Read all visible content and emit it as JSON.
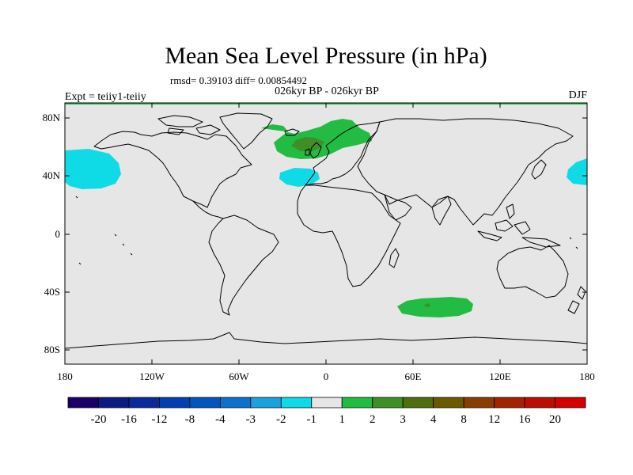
{
  "header": {
    "title": "Mean Sea Level Pressure (in hPa)",
    "stats": "rmsd= 0.39103 diff= 0.00854492",
    "period": "026kyr BP - 026kyr BP",
    "experiment": "Expt = teiiy1-teiiy",
    "season": "DJF"
  },
  "axes": {
    "lat_ticks": [
      "80N",
      "40N",
      "0",
      "40S",
      "80S"
    ],
    "lon_ticks": [
      "180",
      "120W",
      "60W",
      "0",
      "60E",
      "120E",
      "180"
    ]
  },
  "colorbar": {
    "labels": [
      "-20",
      "-16",
      "-12",
      "-8",
      "-4",
      "-3",
      "-2",
      "-1",
      "1",
      "2",
      "3",
      "4",
      "8",
      "12",
      "16",
      "20"
    ],
    "colors": [
      "#1a0066",
      "#0d1a80",
      "#0a2a99",
      "#0040b0",
      "#0055bf",
      "#0a72cc",
      "#1aa2dd",
      "#0fdbe6",
      "#e6e6e6",
      "#22bb44",
      "#3f8f26",
      "#4f6e0f",
      "#6b5a00",
      "#8a3d00",
      "#a52200",
      "#bb0e00",
      "#d40000"
    ]
  },
  "map": {
    "background": "#e6e6e6",
    "anomalies": [
      {
        "name": "north-pacific-negative",
        "color": "#0fdbe6",
        "value": "-1"
      },
      {
        "name": "far-east-pacific-negative",
        "color": "#0fdbe6",
        "value": "-1"
      },
      {
        "name": "north-atlantic-negative",
        "color": "#0fdbe6",
        "value": "-1"
      },
      {
        "name": "north-atlantic-positive",
        "color": "#22bb44",
        "value": "2"
      },
      {
        "name": "north-atlantic-positive-core",
        "color": "#3f8f26",
        "value": "3"
      },
      {
        "name": "southern-ocean-positive",
        "color": "#22bb44",
        "value": "2"
      }
    ]
  }
}
